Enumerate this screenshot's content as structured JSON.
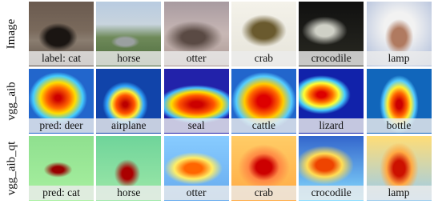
{
  "rows": [
    {
      "label": "Image",
      "captions": [
        "label: cat",
        "horse",
        "otter",
        "crab",
        "crocodile",
        "lamp"
      ]
    },
    {
      "label": "vgg_aib",
      "captions": [
        "pred: deer",
        "airplane",
        "seal",
        "cattle",
        "lizard",
        "bottle"
      ]
    },
    {
      "label": "vgg_aib_qt",
      "captions": [
        "pred: cat",
        "horse",
        "otter",
        "crab",
        "crocodile",
        "lamp"
      ]
    }
  ]
}
